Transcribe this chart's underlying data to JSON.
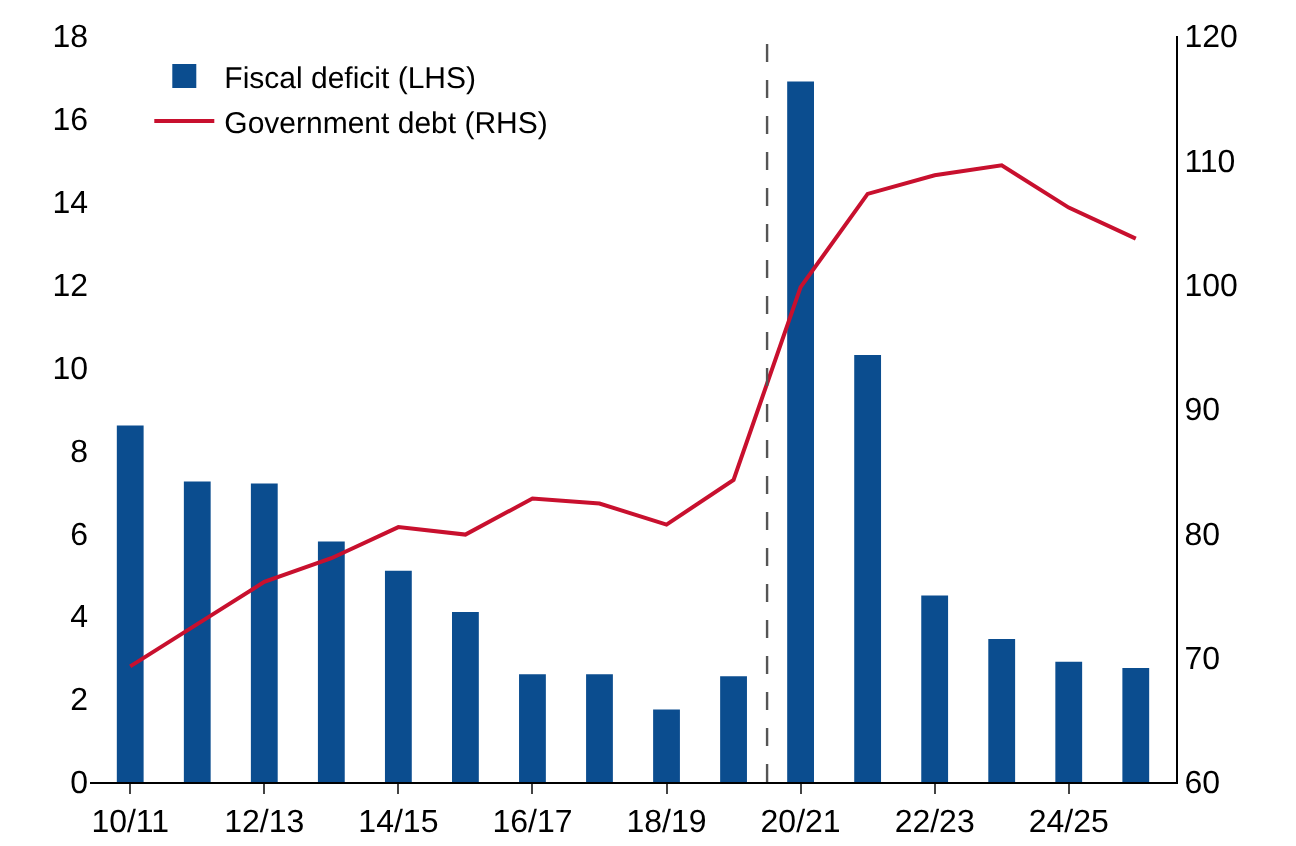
{
  "chart_data": {
    "type": "bar",
    "categories": [
      "10/11",
      null,
      "12/13",
      null,
      "14/15",
      null,
      "16/17",
      null,
      "18/19",
      null,
      "20/21",
      null,
      "22/23",
      null,
      "24/25",
      null
    ],
    "series": [
      {
        "name": "Fiscal deficit (LHS)",
        "color": "#0b4d8f",
        "values": [
          8.6,
          7.25,
          7.2,
          5.8,
          5.1,
          4.1,
          2.6,
          2.6,
          1.75,
          2.55,
          16.9,
          10.3,
          4.5,
          3.45,
          2.9,
          2.75
        ]
      },
      {
        "name": "Government debt (RHS)",
        "type": "line",
        "axis": "y2",
        "color": "#c8102e",
        "values": [
          69.3,
          72.7,
          76.1,
          78,
          80.5,
          79.9,
          82.8,
          82.4,
          80.7,
          84.3,
          99.8,
          107.3,
          108.8,
          109.6,
          106.2,
          103.7
        ]
      }
    ],
    "ylim": [
      0,
      18
    ],
    "yticks": [
      0,
      2,
      4,
      6,
      8,
      10,
      12,
      14,
      16,
      18
    ],
    "y2lim": [
      60,
      120
    ],
    "y2ticks": [
      60,
      70,
      80,
      90,
      100,
      110,
      120
    ],
    "legend": "top left",
    "grid": false,
    "marker": "none",
    "line_style": "solid"
  }
}
